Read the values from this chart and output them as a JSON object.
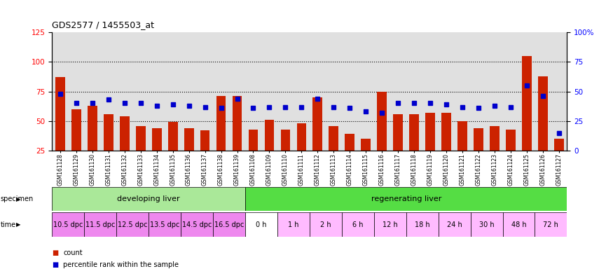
{
  "title": "GDS2577 / 1455503_at",
  "samples": [
    "GSM161128",
    "GSM161129",
    "GSM161130",
    "GSM161131",
    "GSM161132",
    "GSM161133",
    "GSM161134",
    "GSM161135",
    "GSM161136",
    "GSM161137",
    "GSM161138",
    "GSM161139",
    "GSM161108",
    "GSM161109",
    "GSM161110",
    "GSM161111",
    "GSM161112",
    "GSM161113",
    "GSM161114",
    "GSM161115",
    "GSM161116",
    "GSM161117",
    "GSM161118",
    "GSM161119",
    "GSM161120",
    "GSM161121",
    "GSM161122",
    "GSM161123",
    "GSM161124",
    "GSM161125",
    "GSM161126",
    "GSM161127"
  ],
  "counts": [
    87,
    60,
    63,
    56,
    54,
    46,
    44,
    49,
    44,
    42,
    71,
    71,
    43,
    51,
    43,
    48,
    70,
    46,
    39,
    35,
    75,
    56,
    56,
    57,
    57,
    50,
    44,
    46,
    43,
    105,
    88,
    35
  ],
  "percentiles": [
    48,
    40,
    40,
    43,
    40,
    40,
    38,
    39,
    38,
    37,
    36,
    44,
    36,
    37,
    37,
    37,
    44,
    37,
    36,
    33,
    32,
    40,
    40,
    40,
    39,
    37,
    36,
    38,
    37,
    55,
    46,
    15
  ],
  "bar_color": "#cc2200",
  "dot_color": "#0000cc",
  "ylim_left": [
    25,
    125
  ],
  "ylim_right": [
    0,
    100
  ],
  "yticks_left": [
    25,
    50,
    75,
    100,
    125
  ],
  "yticks_right": [
    0,
    25,
    50,
    75,
    100
  ],
  "ytick_labels_right": [
    "0",
    "25",
    "50",
    "75",
    "100%"
  ],
  "hlines": [
    50,
    75,
    100
  ],
  "specimen_groups": [
    {
      "label": "developing liver",
      "color": "#aae899",
      "start": 0,
      "end": 12
    },
    {
      "label": "regenerating liver",
      "color": "#55dd44",
      "start": 12,
      "end": 32
    }
  ],
  "time_groups": [
    {
      "label": "10.5 dpc",
      "color": "#ee88ee",
      "start": 0,
      "end": 2
    },
    {
      "label": "11.5 dpc",
      "color": "#ee88ee",
      "start": 2,
      "end": 4
    },
    {
      "label": "12.5 dpc",
      "color": "#ee88ee",
      "start": 4,
      "end": 6
    },
    {
      "label": "13.5 dpc",
      "color": "#ee88ee",
      "start": 6,
      "end": 8
    },
    {
      "label": "14.5 dpc",
      "color": "#ee88ee",
      "start": 8,
      "end": 10
    },
    {
      "label": "16.5 dpc",
      "color": "#ee88ee",
      "start": 10,
      "end": 12
    },
    {
      "label": "0 h",
      "color": "#ffffff",
      "start": 12,
      "end": 14
    },
    {
      "label": "1 h",
      "color": "#ffbbff",
      "start": 14,
      "end": 16
    },
    {
      "label": "2 h",
      "color": "#ffbbff",
      "start": 16,
      "end": 18
    },
    {
      "label": "6 h",
      "color": "#ffbbff",
      "start": 18,
      "end": 20
    },
    {
      "label": "12 h",
      "color": "#ffbbff",
      "start": 20,
      "end": 22
    },
    {
      "label": "18 h",
      "color": "#ffbbff",
      "start": 22,
      "end": 24
    },
    {
      "label": "24 h",
      "color": "#ffbbff",
      "start": 24,
      "end": 26
    },
    {
      "label": "30 h",
      "color": "#ffbbff",
      "start": 26,
      "end": 28
    },
    {
      "label": "48 h",
      "color": "#ffbbff",
      "start": 28,
      "end": 30
    },
    {
      "label": "72 h",
      "color": "#ffbbff",
      "start": 30,
      "end": 32
    }
  ],
  "background_color": "#ffffff",
  "plot_bg_color": "#e0e0e0",
  "legend_count_color": "#cc2200",
  "legend_pct_color": "#0000cc"
}
